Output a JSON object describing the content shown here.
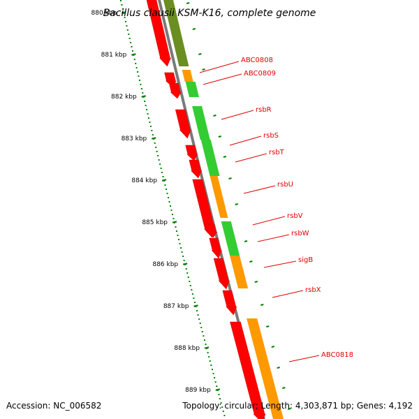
{
  "title": "Bacillus clausii KSM-K16, complete genome",
  "ticks": [
    "880 kbp",
    "881 kbp",
    "882 kbp",
    "883 kbp",
    "884 kbp",
    "885 kbp",
    "886 kbp",
    "887 kbp",
    "888 kbp",
    "889 kbp"
  ],
  "tick_start_kbp": 880,
  "gene_labels": [
    "ABC0808",
    "ABC0809",
    "rsbR",
    "rsbS",
    "rsbT",
    "rsbU",
    "rsbV",
    "rsbW",
    "sigB",
    "rsbX",
    "ABC0818"
  ],
  "accession": "Accession: NC_006582",
  "summary": "Topology: circular; Length: 4,303,871 bp; Genes: 4,192",
  "colors": {
    "backbone": "#7a7a7a",
    "gene_arrow": "#ff0000",
    "cog_green": "#33cc33",
    "cog_orange": "#ff9900",
    "cog_olive": "#6b8e23",
    "tick_mark": "#008000",
    "label": "#e00000"
  }
}
